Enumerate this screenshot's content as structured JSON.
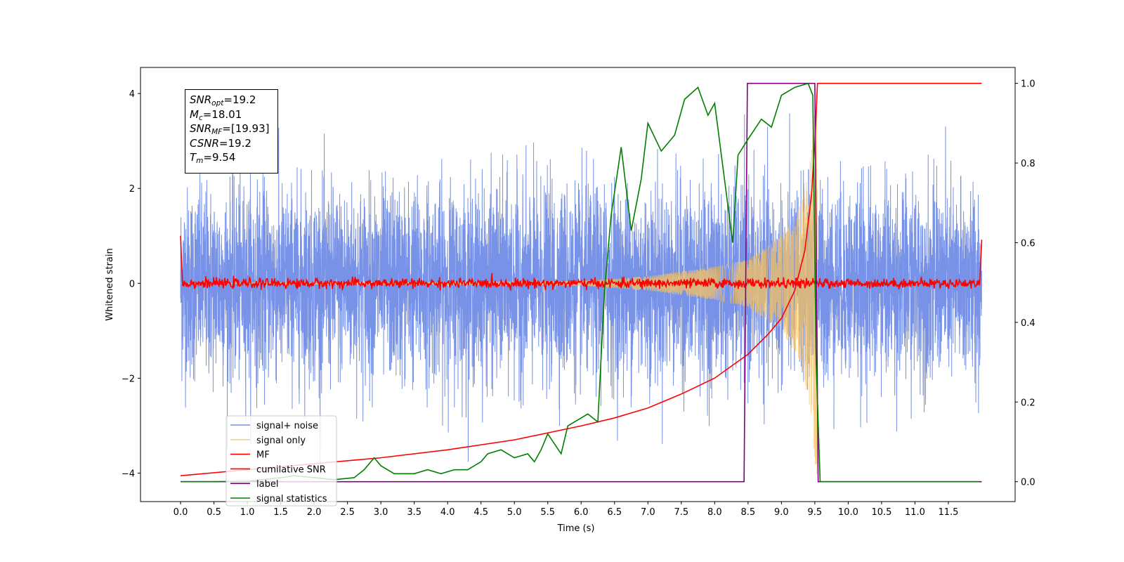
{
  "stats_box": {
    "snr_opt": {
      "name": "SNR",
      "sub": "opt",
      "value": "=19.2"
    },
    "mc": {
      "name": "M",
      "sub": "c",
      "value": "=18.01"
    },
    "snr_mf": {
      "name": "SNR",
      "sub": "MF",
      "value": "=[19.93]"
    },
    "csnr": {
      "name": "CSNR",
      "sub": "",
      "value": "=19.2"
    },
    "tm": {
      "name": "T",
      "sub": "m",
      "value": "=9.54"
    }
  },
  "chart_data": {
    "type": "line",
    "xlabel": "Time (s)",
    "ylabel_left": "Whitened strain",
    "ylabel_right": "",
    "xlim": [
      -0.6,
      12.5
    ],
    "ylim_left": [
      -4.6,
      4.55
    ],
    "ylim_right": [
      -0.05,
      1.04
    ],
    "x_ticks": [
      "0.0",
      "0.5",
      "1.0",
      "1.5",
      "2.0",
      "2.5",
      "3.0",
      "3.5",
      "4.0",
      "4.5",
      "5.0",
      "5.5",
      "6.0",
      "6.5",
      "7.0",
      "7.5",
      "8.0",
      "8.5",
      "9.0",
      "9.5",
      "10.0",
      "10.5",
      "11.0",
      "11.5"
    ],
    "y_ticks_left": [
      "4",
      "2",
      "0",
      "−2",
      "−4"
    ],
    "y_ticks_right": [
      "1.0",
      "0.8",
      "0.6",
      "0.4",
      "0.2",
      "0.0"
    ],
    "legend_position": "lower left",
    "series": [
      {
        "name": "signal+ noise",
        "color": "#7792e6",
        "axis": "left",
        "kind": "noise",
        "x_range": [
          0,
          12
        ],
        "amplitude_std": 1.0,
        "max_abs": 4.15
      },
      {
        "name": "signal only",
        "color": "#f5c262",
        "axis": "left",
        "kind": "chirp",
        "x_range": [
          0,
          9.54
        ],
        "peak_amplitude": 4.1,
        "envelope": [
          [
            6.0,
            0.05
          ],
          [
            7.0,
            0.15
          ],
          [
            8.0,
            0.35
          ],
          [
            8.5,
            0.5
          ],
          [
            9.0,
            1.0
          ],
          [
            9.3,
            1.7
          ],
          [
            9.45,
            2.8
          ],
          [
            9.52,
            4.1
          ]
        ]
      },
      {
        "name": "MF",
        "color": "#ff0000",
        "axis": "left",
        "kind": "mf",
        "x_range": [
          0,
          12
        ],
        "points": [
          [
            0.0,
            1.0
          ],
          [
            0.03,
            0.0
          ],
          [
            5.0,
            0.0
          ],
          [
            11.97,
            0.0
          ],
          [
            12.0,
            0.92
          ]
        ],
        "noise_std": 0.05
      },
      {
        "name": "cumilative SNR",
        "color": "#ff0000",
        "axis": "right",
        "kind": "curve",
        "points": [
          [
            0.0,
            0.015
          ],
          [
            1.0,
            0.03
          ],
          [
            2.0,
            0.045
          ],
          [
            3.0,
            0.06
          ],
          [
            4.0,
            0.08
          ],
          [
            5.0,
            0.105
          ],
          [
            6.0,
            0.14
          ],
          [
            6.5,
            0.16
          ],
          [
            7.0,
            0.185
          ],
          [
            7.5,
            0.22
          ],
          [
            8.0,
            0.26
          ],
          [
            8.5,
            0.32
          ],
          [
            8.8,
            0.37
          ],
          [
            9.0,
            0.41
          ],
          [
            9.2,
            0.48
          ],
          [
            9.35,
            0.58
          ],
          [
            9.45,
            0.72
          ],
          [
            9.5,
            0.85
          ],
          [
            9.54,
            1.0
          ],
          [
            12.0,
            1.0
          ]
        ]
      },
      {
        "name": "label",
        "color": "#800080",
        "axis": "right",
        "kind": "step",
        "points": [
          [
            0.0,
            0.0
          ],
          [
            8.44,
            0.0
          ],
          [
            8.49,
            1.0
          ],
          [
            9.5,
            1.0
          ],
          [
            9.55,
            0.0
          ],
          [
            12.0,
            0.0
          ]
        ]
      },
      {
        "name": "signal statistics",
        "color": "#008000",
        "axis": "right",
        "kind": "curve",
        "points": [
          [
            0.0,
            0.0
          ],
          [
            0.5,
            0.0
          ],
          [
            1.0,
            0.001
          ],
          [
            1.5,
            0.01
          ],
          [
            1.7,
            0.015
          ],
          [
            2.0,
            0.01
          ],
          [
            2.3,
            0.005
          ],
          [
            2.6,
            0.01
          ],
          [
            2.75,
            0.03
          ],
          [
            2.9,
            0.06
          ],
          [
            3.0,
            0.04
          ],
          [
            3.2,
            0.02
          ],
          [
            3.5,
            0.02
          ],
          [
            3.7,
            0.03
          ],
          [
            3.9,
            0.02
          ],
          [
            4.1,
            0.03
          ],
          [
            4.3,
            0.03
          ],
          [
            4.5,
            0.05
          ],
          [
            4.6,
            0.07
          ],
          [
            4.8,
            0.08
          ],
          [
            5.0,
            0.06
          ],
          [
            5.2,
            0.07
          ],
          [
            5.3,
            0.05
          ],
          [
            5.4,
            0.08
          ],
          [
            5.5,
            0.12
          ],
          [
            5.7,
            0.07
          ],
          [
            5.8,
            0.14
          ],
          [
            6.0,
            0.16
          ],
          [
            6.1,
            0.17
          ],
          [
            6.25,
            0.15
          ],
          [
            6.35,
            0.48
          ],
          [
            6.45,
            0.67
          ],
          [
            6.6,
            0.84
          ],
          [
            6.75,
            0.63
          ],
          [
            6.9,
            0.76
          ],
          [
            7.0,
            0.9
          ],
          [
            7.2,
            0.83
          ],
          [
            7.4,
            0.87
          ],
          [
            7.55,
            0.96
          ],
          [
            7.75,
            0.99
          ],
          [
            7.9,
            0.92
          ],
          [
            8.0,
            0.95
          ],
          [
            8.1,
            0.82
          ],
          [
            8.27,
            0.6
          ],
          [
            8.35,
            0.82
          ],
          [
            8.5,
            0.86
          ],
          [
            8.7,
            0.91
          ],
          [
            8.85,
            0.89
          ],
          [
            9.0,
            0.97
          ],
          [
            9.2,
            0.99
          ],
          [
            9.4,
            1.0
          ],
          [
            9.47,
            0.97
          ],
          [
            9.52,
            0.3
          ],
          [
            9.58,
            0.0
          ],
          [
            11.95,
            0.0
          ]
        ]
      }
    ]
  }
}
